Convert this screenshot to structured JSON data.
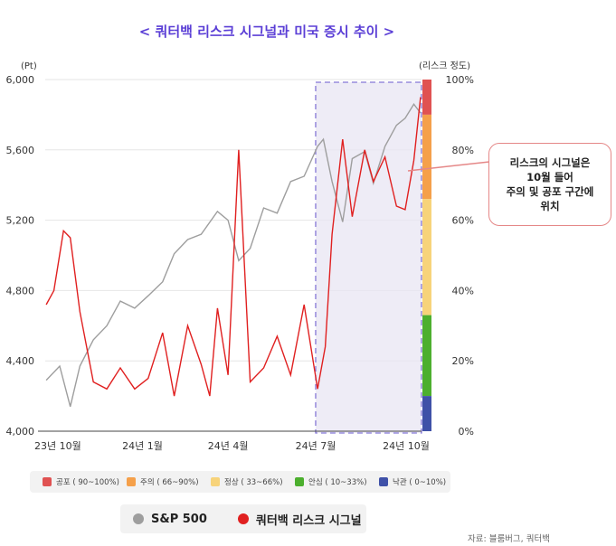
{
  "title": "< 쿼터백 리스크 시그널과 미국 증시 추이 >",
  "left_axis_unit": "(Pt)",
  "right_axis_unit": "(리스크 정도)",
  "callout_lines": [
    "리스크의 시그널은",
    "10월 들어",
    "주의 및 공포 구간에",
    "위치"
  ],
  "source": "자료: 블룸버그, 쿼터백",
  "risk_zones": [
    {
      "label": "공포 ( 90~100%)",
      "color": "#e05252",
      "from": 0.9,
      "to": 1.0
    },
    {
      "label": "주의 ( 66~90%)",
      "color": "#f5a04a",
      "from": 0.66,
      "to": 0.9
    },
    {
      "label": "정상 ( 33~66%)",
      "color": "#f7d37a",
      "from": 0.33,
      "to": 0.66
    },
    {
      "label": "안심 ( 10~33%)",
      "color": "#4caf2e",
      "from": 0.1,
      "to": 0.33
    },
    {
      "label": "낙관 ( 0~10%)",
      "color": "#3f51a8",
      "from": 0.0,
      "to": 0.1
    }
  ],
  "series_legend": [
    {
      "label": "S&P 500",
      "color": "#9e9e9e"
    },
    {
      "label": "쿼터백 리스크 시그널",
      "color": "#e02020"
    }
  ],
  "chart_data": {
    "type": "line",
    "x_ticks": [
      "23년 10월",
      "24년 1월",
      "24년 4월",
      "24년 7월",
      "24년 10월"
    ],
    "y_left_ticks": [
      "4,000",
      "4,400",
      "4,800",
      "5,200",
      "5,600",
      "6,000"
    ],
    "y_left_range": [
      4000,
      6000
    ],
    "y_right_ticks": [
      "0%",
      "20%",
      "40%",
      "60%",
      "80%",
      "100%"
    ],
    "y_right_range": [
      0,
      1
    ],
    "grid": "horizontal",
    "highlight_region": {
      "from": "24년 7월",
      "to": "24년 10월"
    },
    "series": [
      {
        "name": "S&P 500",
        "color": "#9e9e9e",
        "x": [
          "2023-10-02",
          "2023-10-16",
          "2023-10-27",
          "2023-11-06",
          "2023-11-20",
          "2023-12-04",
          "2023-12-18",
          "2024-01-02",
          "2024-01-16",
          "2024-01-31",
          "2024-02-12",
          "2024-02-26",
          "2024-03-11",
          "2024-03-28",
          "2024-04-08",
          "2024-04-19",
          "2024-05-01",
          "2024-05-15",
          "2024-05-29",
          "2024-06-12",
          "2024-06-26",
          "2024-07-10",
          "2024-07-16",
          "2024-07-25",
          "2024-08-05",
          "2024-08-15",
          "2024-08-28",
          "2024-09-06",
          "2024-09-18",
          "2024-09-30",
          "2024-10-09",
          "2024-10-18",
          "2024-10-25"
        ],
        "values": [
          4290,
          4370,
          4140,
          4370,
          4520,
          4600,
          4740,
          4700,
          4770,
          4850,
          5010,
          5090,
          5120,
          5250,
          5200,
          4970,
          5040,
          5270,
          5240,
          5420,
          5450,
          5620,
          5660,
          5420,
          5190,
          5550,
          5590,
          5410,
          5620,
          5740,
          5780,
          5860,
          5810
        ]
      },
      {
        "name": "쿼터백 리스크 시그널",
        "color": "#e02020",
        "x": [
          "2023-10-02",
          "2023-10-10",
          "2023-10-20",
          "2023-10-27",
          "2023-11-06",
          "2023-11-20",
          "2023-12-04",
          "2023-12-18",
          "2024-01-02",
          "2024-01-16",
          "2024-01-31",
          "2024-02-12",
          "2024-02-26",
          "2024-03-11",
          "2024-03-20",
          "2024-03-28",
          "2024-04-08",
          "2024-04-19",
          "2024-05-01",
          "2024-05-15",
          "2024-05-29",
          "2024-06-12",
          "2024-06-26",
          "2024-07-10",
          "2024-07-18",
          "2024-07-25",
          "2024-08-05",
          "2024-08-15",
          "2024-08-28",
          "2024-09-06",
          "2024-09-18",
          "2024-09-30",
          "2024-10-09",
          "2024-10-18",
          "2024-10-25"
        ],
        "values": [
          0.36,
          0.4,
          0.57,
          0.55,
          0.34,
          0.14,
          0.12,
          0.18,
          0.12,
          0.15,
          0.28,
          0.1,
          0.3,
          0.19,
          0.1,
          0.35,
          0.16,
          0.8,
          0.14,
          0.18,
          0.27,
          0.16,
          0.36,
          0.12,
          0.24,
          0.56,
          0.83,
          0.61,
          0.8,
          0.71,
          0.78,
          0.64,
          0.63,
          0.77,
          0.95
        ]
      }
    ]
  }
}
